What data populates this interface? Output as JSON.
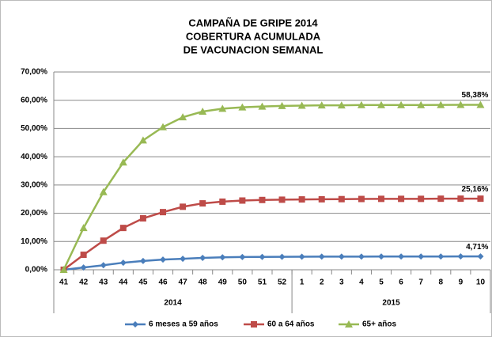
{
  "chart_data": {
    "type": "line",
    "title": [
      "CAMPAÑA DE GRIPE 2014",
      "COBERTURA ACUMULADA",
      "DE VACUNACION SEMANAL"
    ],
    "categories": [
      "41",
      "42",
      "43",
      "44",
      "45",
      "46",
      "47",
      "48",
      "49",
      "50",
      "51",
      "52",
      "1",
      "2",
      "3",
      "4",
      "5",
      "6",
      "7",
      "8",
      "9",
      "10"
    ],
    "x_groups": [
      {
        "label": "2014",
        "count": 12
      },
      {
        "label": "2015",
        "count": 10
      }
    ],
    "ylim": [
      0,
      70
    ],
    "yticks": [
      {
        "value": 0,
        "label": "0,00%"
      },
      {
        "value": 10,
        "label": "10,00%"
      },
      {
        "value": 20,
        "label": "20,00%"
      },
      {
        "value": 30,
        "label": "30,00%"
      },
      {
        "value": 40,
        "label": "40,00%"
      },
      {
        "value": 50,
        "label": "50,00%"
      },
      {
        "value": 60,
        "label": "60,00%"
      },
      {
        "value": 70,
        "label": "70,00%"
      }
    ],
    "grid": true,
    "legend": "bottom",
    "series": [
      {
        "name": "6 meses a 59 años",
        "color": "#4a7ebb",
        "marker": "diamond",
        "values": [
          0,
          0.8,
          1.6,
          2.5,
          3.1,
          3.6,
          3.9,
          4.2,
          4.4,
          4.5,
          4.55,
          4.6,
          4.62,
          4.64,
          4.65,
          4.67,
          4.68,
          4.69,
          4.7,
          4.7,
          4.71,
          4.71
        ],
        "value_labels": [
          null,
          null,
          null,
          null,
          null,
          null,
          null,
          null,
          null,
          null,
          null,
          null,
          null,
          null,
          null,
          null,
          null,
          null,
          null,
          null,
          null,
          "4,71%"
        ]
      },
      {
        "name": "60 a 64 años",
        "color": "#be4b48",
        "marker": "square",
        "values": [
          0,
          5.3,
          10.3,
          14.8,
          18.2,
          20.4,
          22.3,
          23.5,
          24.1,
          24.5,
          24.7,
          24.8,
          24.9,
          24.95,
          25,
          25.05,
          25.1,
          25.1,
          25.1,
          25.15,
          25.16,
          25.16
        ],
        "value_labels": [
          null,
          null,
          null,
          null,
          null,
          null,
          null,
          null,
          null,
          null,
          null,
          null,
          null,
          null,
          null,
          null,
          null,
          null,
          null,
          null,
          null,
          "25,16%"
        ]
      },
      {
        "name": "65+ años",
        "color": "#98b954",
        "marker": "triangle",
        "values": [
          0,
          14.8,
          27.5,
          38,
          45.8,
          50.5,
          54,
          56,
          57,
          57.5,
          57.8,
          58,
          58.1,
          58.2,
          58.2,
          58.3,
          58.3,
          58.3,
          58.3,
          58.35,
          58.38,
          58.38
        ],
        "value_labels": [
          null,
          null,
          null,
          null,
          null,
          null,
          null,
          null,
          null,
          null,
          null,
          null,
          null,
          null,
          null,
          null,
          null,
          null,
          null,
          null,
          null,
          "58,38%"
        ]
      }
    ]
  }
}
